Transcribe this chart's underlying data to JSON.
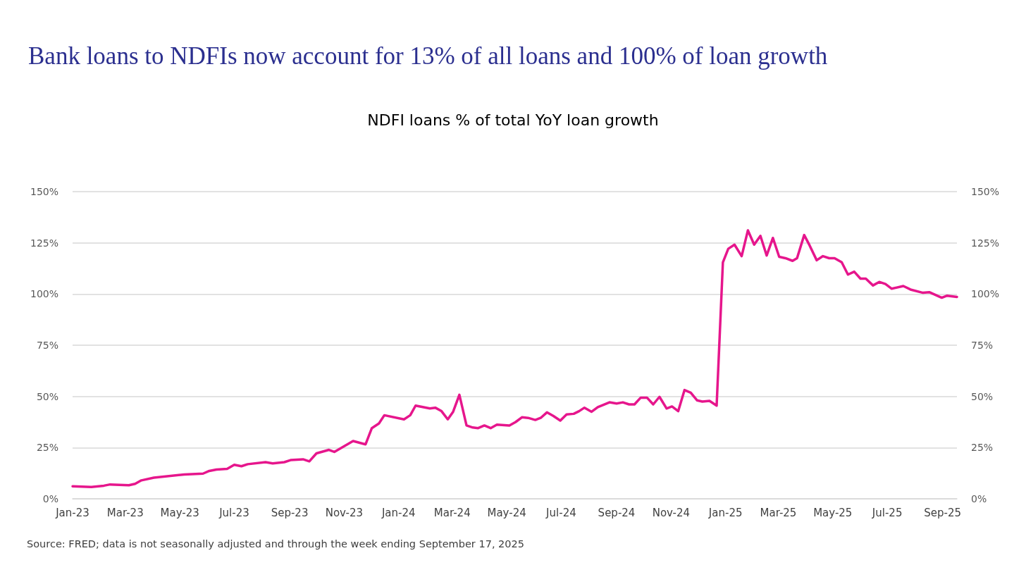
{
  "chart_data": {
    "type": "line",
    "title": "Bank loans to NDFIs now account for 13% of all loans and 100% of loan growth",
    "subtitle": "NDFI loans % of total YoY loan growth",
    "annotations": [
      "Source: FRED; data is not seasonally adjusted and through the week ending September 17, 2025"
    ],
    "x": [
      "2023-01-01",
      "2023-01-22",
      "2023-02-05",
      "2023-02-12",
      "2023-03-05",
      "2023-03-12",
      "2023-03-19",
      "2023-04-02",
      "2023-05-06",
      "2023-05-27",
      "2023-06-03",
      "2023-06-11",
      "2023-06-23",
      "2023-07-01",
      "2023-07-09",
      "2023-07-16",
      "2023-08-05",
      "2023-08-13",
      "2023-08-26",
      "2023-09-02",
      "2023-09-16",
      "2023-09-23",
      "2023-10-01",
      "2023-10-15",
      "2023-10-21",
      "2023-11-11",
      "2023-11-25",
      "2023-12-02",
      "2023-12-10",
      "2023-12-16",
      "2024-01-07",
      "2024-01-14",
      "2024-01-20",
      "2024-02-05",
      "2024-02-11",
      "2024-02-18",
      "2024-02-25",
      "2024-03-02",
      "2024-03-09",
      "2024-03-17",
      "2024-03-24",
      "2024-03-30",
      "2024-04-06",
      "2024-04-13",
      "2024-04-20",
      "2024-05-04",
      "2024-05-11",
      "2024-05-18",
      "2024-05-25",
      "2024-06-02",
      "2024-06-08",
      "2024-06-15",
      "2024-06-22",
      "2024-06-30",
      "2024-07-07",
      "2024-07-15",
      "2024-07-21",
      "2024-07-27",
      "2024-08-04",
      "2024-08-11",
      "2024-08-24",
      "2024-09-01",
      "2024-09-08",
      "2024-09-15",
      "2024-09-21",
      "2024-09-28",
      "2024-10-05",
      "2024-10-12",
      "2024-10-19",
      "2024-10-27",
      "2024-11-02",
      "2024-11-09",
      "2024-11-16",
      "2024-11-23",
      "2024-11-30",
      "2024-12-06",
      "2024-12-14",
      "2024-12-22",
      "2024-12-29",
      "2025-01-04",
      "2025-01-11",
      "2025-01-19",
      "2025-01-26",
      "2025-02-02",
      "2025-02-09",
      "2025-02-16",
      "2025-02-23",
      "2025-03-02",
      "2025-03-09",
      "2025-03-17",
      "2025-03-22",
      "2025-03-30",
      "2025-04-05",
      "2025-04-13",
      "2025-04-20",
      "2025-04-27",
      "2025-05-03",
      "2025-05-11",
      "2025-05-18",
      "2025-05-25",
      "2025-06-01",
      "2025-06-07",
      "2025-06-15",
      "2025-06-22",
      "2025-06-29",
      "2025-07-06",
      "2025-07-19",
      "2025-07-27",
      "2025-08-10",
      "2025-08-17",
      "2025-08-31",
      "2025-09-06",
      "2025-09-17"
    ],
    "series": [
      {
        "color": "#e6168c",
        "values": [
          6.1,
          5.8,
          6.4,
          7.0,
          6.6,
          7.3,
          9.0,
          10.3,
          11.9,
          12.3,
          13.6,
          14.3,
          14.6,
          16.6,
          15.9,
          16.9,
          17.9,
          17.3,
          17.9,
          18.9,
          19.3,
          18.3,
          22.2,
          23.9,
          22.9,
          28.2,
          26.6,
          34.5,
          36.8,
          40.8,
          38.8,
          40.8,
          45.5,
          44.1,
          44.5,
          42.8,
          38.8,
          42.5,
          50.8,
          35.8,
          34.8,
          34.5,
          35.8,
          34.5,
          36.2,
          35.8,
          37.5,
          39.8,
          39.5,
          38.5,
          39.5,
          42.2,
          40.5,
          38.2,
          41.2,
          41.5,
          42.8,
          44.5,
          42.5,
          44.8,
          47.1,
          46.5,
          47.1,
          46.1,
          46.1,
          49.4,
          49.4,
          46.1,
          49.8,
          44.1,
          45.1,
          42.8,
          53.1,
          51.8,
          48.1,
          47.5,
          47.8,
          45.5,
          115.5,
          122.1,
          124.1,
          118.5,
          131.1,
          124.1,
          128.4,
          118.8,
          127.4,
          118.2,
          117.5,
          116.2,
          117.5,
          128.8,
          123.8,
          116.5,
          118.5,
          117.5,
          117.5,
          115.5,
          109.5,
          110.9,
          107.5,
          107.5,
          104.2,
          105.9,
          104.9,
          102.6,
          103.9,
          102.2,
          100.6,
          100.9,
          98.2,
          99.2,
          98.6
        ]
      }
    ],
    "xlim": [
      "2023-01-01",
      "2025-09-17"
    ],
    "xticks": [
      {
        "value": "2023-01-01",
        "label": "Jan-23"
      },
      {
        "value": "2023-03-01",
        "label": "Mar-23"
      },
      {
        "value": "2023-05-01",
        "label": "May-23"
      },
      {
        "value": "2023-07-01",
        "label": "Jul-23"
      },
      {
        "value": "2023-09-01",
        "label": "Sep-23"
      },
      {
        "value": "2023-11-01",
        "label": "Nov-23"
      },
      {
        "value": "2024-01-01",
        "label": "Jan-24"
      },
      {
        "value": "2024-03-01",
        "label": "Mar-24"
      },
      {
        "value": "2024-05-01",
        "label": "May-24"
      },
      {
        "value": "2024-07-01",
        "label": "Jul-24"
      },
      {
        "value": "2024-09-01",
        "label": "Sep-24"
      },
      {
        "value": "2024-11-01",
        "label": "Nov-24"
      },
      {
        "value": "2025-01-01",
        "label": "Jan-25"
      },
      {
        "value": "2025-03-01",
        "label": "Mar-25"
      },
      {
        "value": "2025-05-01",
        "label": "May-25"
      },
      {
        "value": "2025-07-01",
        "label": "Jul-25"
      },
      {
        "value": "2025-09-01",
        "label": "Sep-25"
      }
    ],
    "ylim": [
      0,
      150
    ],
    "yticks": [
      {
        "value": 0,
        "label": "0%"
      },
      {
        "value": 25,
        "label": "25%"
      },
      {
        "value": 50,
        "label": "50%"
      },
      {
        "value": 75,
        "label": "75%"
      },
      {
        "value": 100,
        "label": "100%"
      },
      {
        "value": 125,
        "label": "125%"
      },
      {
        "value": 150,
        "label": "150%"
      }
    ],
    "y2lim": [
      0,
      150
    ],
    "y2ticks": [
      {
        "value": 0,
        "label": "0%"
      },
      {
        "value": 25,
        "label": "25%"
      },
      {
        "value": 50,
        "label": "50%"
      },
      {
        "value": 75,
        "label": "75%"
      },
      {
        "value": 100,
        "label": "100%"
      },
      {
        "value": 125,
        "label": "125%"
      },
      {
        "value": 150,
        "label": "150%"
      }
    ],
    "grid": "y",
    "marker": "none",
    "line_style": "solid"
  }
}
